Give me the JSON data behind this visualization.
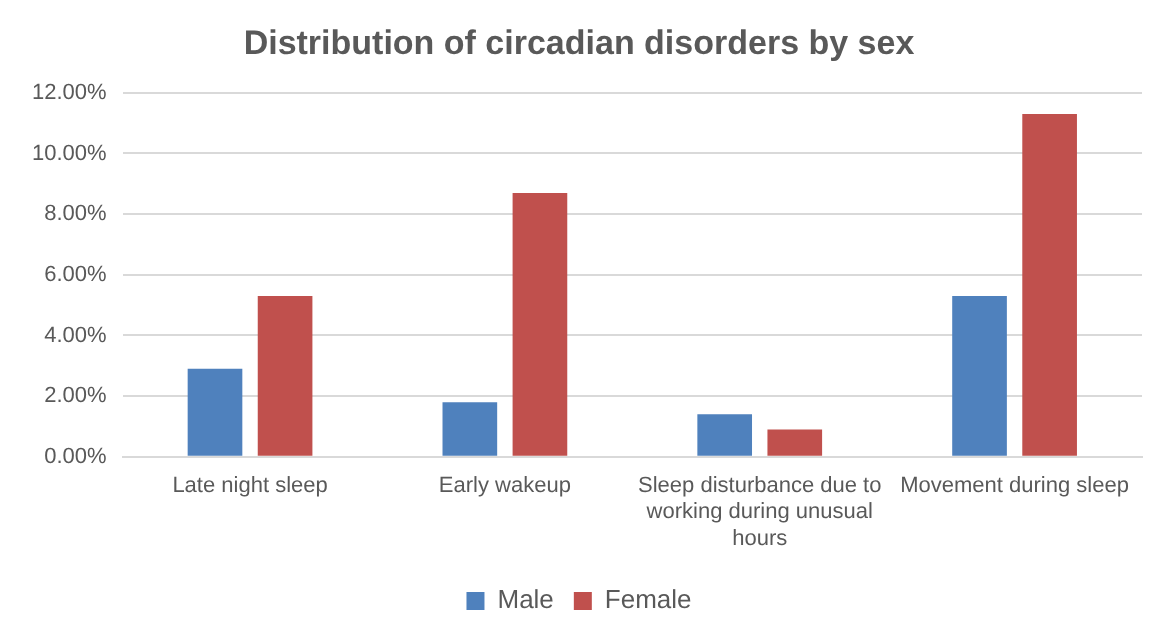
{
  "chart_data": {
    "type": "bar",
    "title": "Distribution of circadian disorders by sex",
    "categories": [
      "Late night sleep",
      "Early wakeup",
      "Sleep disturbance due to working during unusual hours",
      "Movement during sleep"
    ],
    "series": [
      {
        "name": "Male",
        "color": "#4f81bd",
        "values": [
          2.9,
          1.8,
          1.4,
          5.3
        ]
      },
      {
        "name": "Female",
        "color": "#c0504d",
        "values": [
          5.3,
          8.7,
          0.9,
          11.3
        ]
      }
    ],
    "ylim": [
      0,
      12
    ],
    "yticks": [
      {
        "value": 0,
        "label": "0.00%"
      },
      {
        "value": 2,
        "label": "2.00%"
      },
      {
        "value": 4,
        "label": "4.00%"
      },
      {
        "value": 6,
        "label": "6.00%"
      },
      {
        "value": 8,
        "label": "8.00%"
      },
      {
        "value": 10,
        "label": "10.00%"
      },
      {
        "value": 12,
        "label": "12.00%"
      }
    ],
    "grid": "y",
    "legend": "bottom"
  }
}
